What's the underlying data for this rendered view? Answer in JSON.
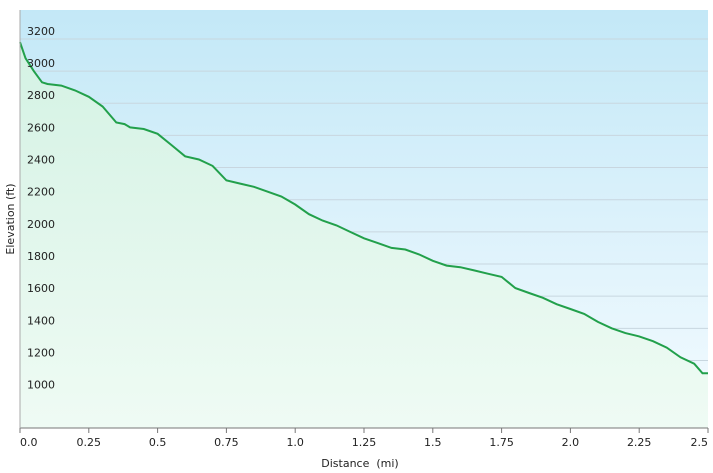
{
  "chart_data": {
    "type": "area",
    "xlabel": "Distance  (mi)",
    "ylabel": "Elevation (ft)",
    "xlim": [
      0,
      2.5
    ],
    "ylim": [
      780,
      3380
    ],
    "x_ticks": [
      "0.0",
      "0.25",
      "0.5",
      "0.75",
      "1.0",
      "1.25",
      "1.5",
      "1.75",
      "2.0",
      "2.25",
      "2.5"
    ],
    "y_ticks": [
      "1000",
      "1200",
      "1400",
      "1600",
      "1800",
      "2000",
      "2200",
      "2400",
      "2600",
      "2800",
      "3000",
      "3200"
    ],
    "grid": true,
    "line_color": "#22a04b",
    "series": [
      {
        "x": [
          0,
          0.02,
          0.05,
          0.08,
          0.1,
          0.15,
          0.2,
          0.25,
          0.3,
          0.35,
          0.38,
          0.4,
          0.45,
          0.5,
          0.55,
          0.6,
          0.65,
          0.7,
          0.75,
          0.8,
          0.85,
          0.9,
          0.95,
          1.0,
          1.05,
          1.1,
          1.15,
          1.2,
          1.25,
          1.3,
          1.35,
          1.4,
          1.45,
          1.5,
          1.55,
          1.6,
          1.65,
          1.7,
          1.75,
          1.8,
          1.85,
          1.9,
          1.95,
          2.0,
          2.05,
          2.1,
          2.15,
          2.2,
          2.25,
          2.3,
          2.35,
          2.4,
          2.45,
          2.48,
          2.5
        ],
        "y": [
          3180,
          3080,
          3000,
          2930,
          2920,
          2910,
          2880,
          2840,
          2780,
          2680,
          2670,
          2650,
          2640,
          2610,
          2540,
          2470,
          2450,
          2410,
          2320,
          2300,
          2280,
          2250,
          2220,
          2170,
          2110,
          2070,
          2040,
          2000,
          1960,
          1930,
          1900,
          1890,
          1860,
          1820,
          1790,
          1780,
          1760,
          1740,
          1720,
          1650,
          1620,
          1590,
          1550,
          1520,
          1490,
          1440,
          1400,
          1370,
          1350,
          1320,
          1280,
          1220,
          1180,
          1120,
          1120
        ]
      }
    ]
  }
}
